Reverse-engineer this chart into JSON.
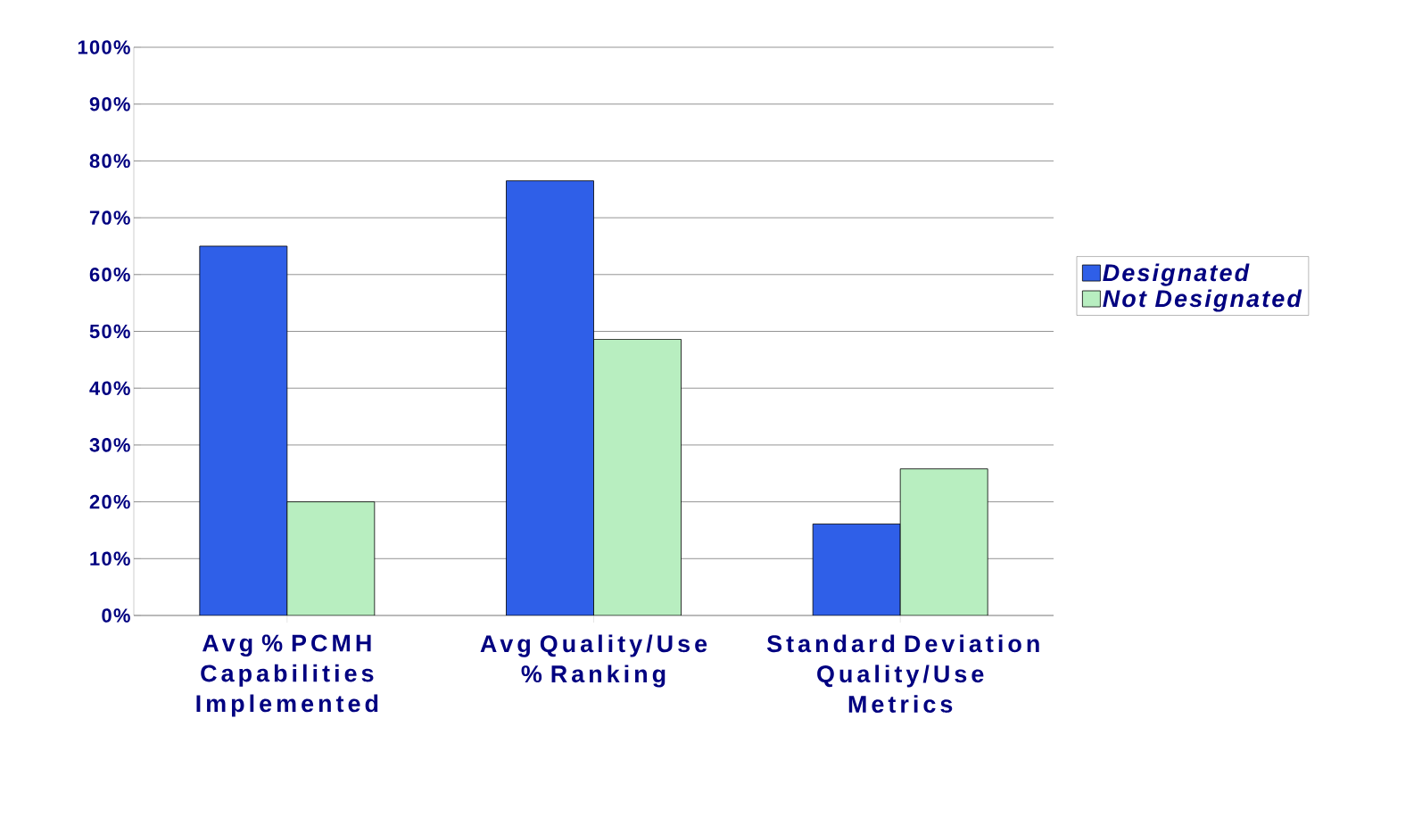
{
  "chart_data": {
    "type": "bar",
    "categories": [
      "Avg % PCMH Capabilities Implemented",
      "Avg Quality/Use % Ranking",
      "Standard Deviation Quality/Use Metrics"
    ],
    "series": [
      {
        "name": "Designated",
        "color": "#2f5fe8",
        "values": [
          65,
          76.5,
          16.1
        ]
      },
      {
        "name": "Not Designated",
        "color": "#b8eec0",
        "values": [
          20,
          48.6,
          25.8
        ]
      }
    ],
    "ylim": [
      0,
      100
    ],
    "yticks": [
      {
        "value": 0,
        "label": "0%"
      },
      {
        "value": 10,
        "label": "10%"
      },
      {
        "value": 20,
        "label": "20%"
      },
      {
        "value": 30,
        "label": "30%"
      },
      {
        "value": 40,
        "label": "40%"
      },
      {
        "value": 50,
        "label": "50%"
      },
      {
        "value": 60,
        "label": "60%"
      },
      {
        "value": 70,
        "label": "70%"
      },
      {
        "value": 80,
        "label": "80%"
      },
      {
        "value": 90,
        "label": "90%"
      },
      {
        "value": 100,
        "label": "100%"
      }
    ],
    "grid": "y",
    "legend": "right"
  }
}
